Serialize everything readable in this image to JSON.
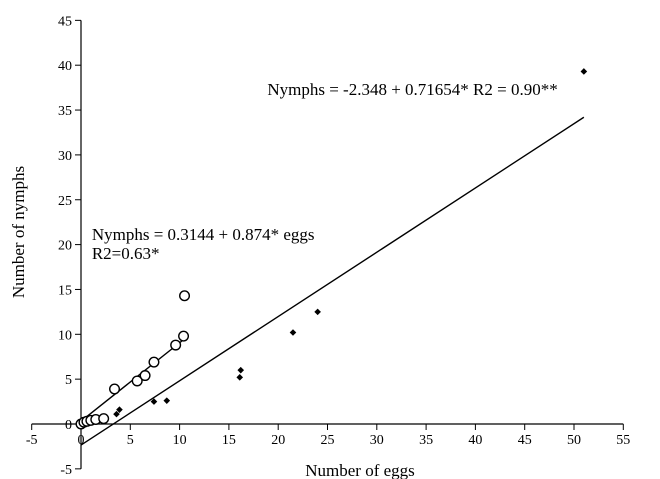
{
  "chart_data": {
    "type": "scatter",
    "title": "",
    "xlabel": "Number of eggs",
    "ylabel": "Number of nymphs",
    "xlim": [
      -5,
      55
    ],
    "ylim": [
      -5,
      45
    ],
    "x_ticks": [
      -5,
      0,
      5,
      10,
      15,
      20,
      25,
      30,
      35,
      40,
      45,
      50,
      55
    ],
    "y_ticks": [
      -5,
      0,
      5,
      10,
      15,
      20,
      25,
      30,
      35,
      40,
      45
    ],
    "grid": false,
    "legend": null,
    "series": [
      {
        "marker": "open-circle",
        "points": [
          [
            0,
            0
          ],
          [
            0.3,
            0.2
          ],
          [
            0.6,
            0.3
          ],
          [
            1.0,
            0.4
          ],
          [
            1.5,
            0.5
          ],
          [
            2.3,
            0.6
          ],
          [
            3.4,
            3.9
          ],
          [
            5.7,
            4.8
          ],
          [
            6.5,
            5.4
          ],
          [
            7.4,
            6.9
          ],
          [
            9.6,
            8.8
          ],
          [
            10.4,
            9.8
          ],
          [
            10.5,
            14.3
          ]
        ],
        "trendline": {
          "intercept": 0.3144,
          "slope": 0.874,
          "x_range": [
            0,
            10.5
          ]
        }
      },
      {
        "marker": "filled-diamond",
        "points": [
          [
            3.6,
            1.1
          ],
          [
            3.9,
            1.6
          ],
          [
            7.4,
            2.5
          ],
          [
            8.7,
            2.6
          ],
          [
            16.1,
            5.2
          ],
          [
            16.2,
            6.0
          ],
          [
            21.5,
            10.2
          ],
          [
            24.0,
            12.5
          ],
          [
            51.0,
            39.3
          ]
        ],
        "trendline": {
          "intercept": -2.348,
          "slope": 0.71654,
          "x_range": [
            0,
            51
          ]
        }
      }
    ],
    "annotations": [
      {
        "text": "Nymphs = -2.348 + 0.71654* R2 = 0.90**",
        "x": 18.9,
        "y": 36.7
      },
      {
        "text": "Nymphs = 0.3144 + 0.874* eggs",
        "x": 1.1,
        "y": 20.5
      },
      {
        "text": "R2=0.63*",
        "x": 1.1,
        "y": 18.4
      }
    ]
  }
}
